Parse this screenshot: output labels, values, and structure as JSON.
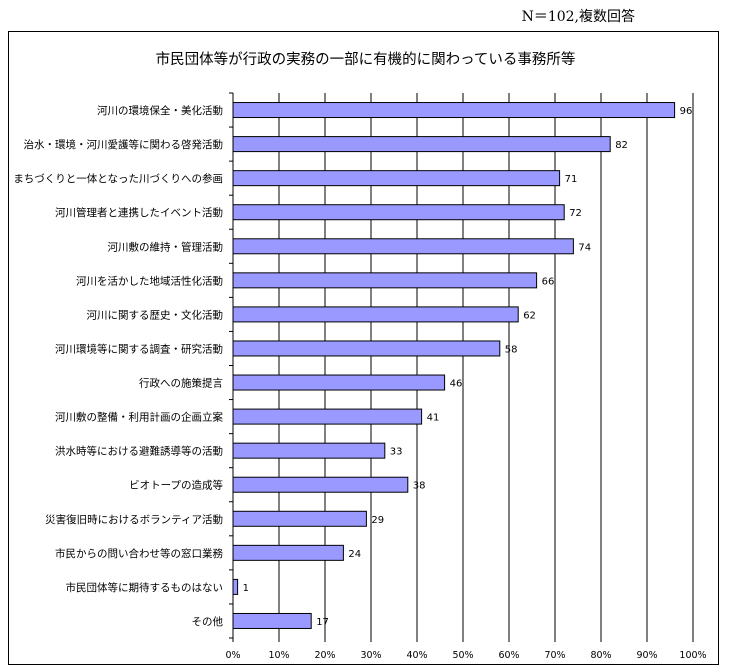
{
  "note": "N＝102,複数回答",
  "chart_data": {
    "type": "bar",
    "orientation": "horizontal",
    "title": "市民団体等が行政の実務の一部に有機的に関わっている事務所等",
    "categories": [
      "河川の環境保全・美化活動",
      "治水・環境・河川愛護等に関わる啓発活動",
      "まちづくりと一体となった川づくりへの参画",
      "河川管理者と連携したイベント活動",
      "河川敷の維持・管理活動",
      "河川を活かした地域活性化活動",
      "河川に関する歴史・文化活動",
      "河川環境等に関する調査・研究活動",
      "行政への施策提言",
      "河川敷の整備・利用計画の企画立案",
      "洪水時等における避難誘導等の活動",
      "ビオトープの造成等",
      "災害復旧時におけるボランティア活動",
      "市民からの問い合わせ等の窓口業務",
      "市民団体等に期待するものはない",
      "その他"
    ],
    "values": [
      96,
      82,
      71,
      72,
      74,
      66,
      62,
      58,
      46,
      41,
      33,
      38,
      29,
      24,
      1,
      17
    ],
    "total_n": 102,
    "xlim": [
      0,
      100
    ],
    "x_unit": "%",
    "x_ticks": [
      "0%",
      "10%",
      "20%",
      "30%",
      "40%",
      "50%",
      "60%",
      "70%",
      "80%",
      "90%",
      "100%"
    ],
    "grid": true,
    "colors": {
      "bar_fill": "#9999ff",
      "bar_stroke": "#000000",
      "grid": "#000000"
    }
  }
}
